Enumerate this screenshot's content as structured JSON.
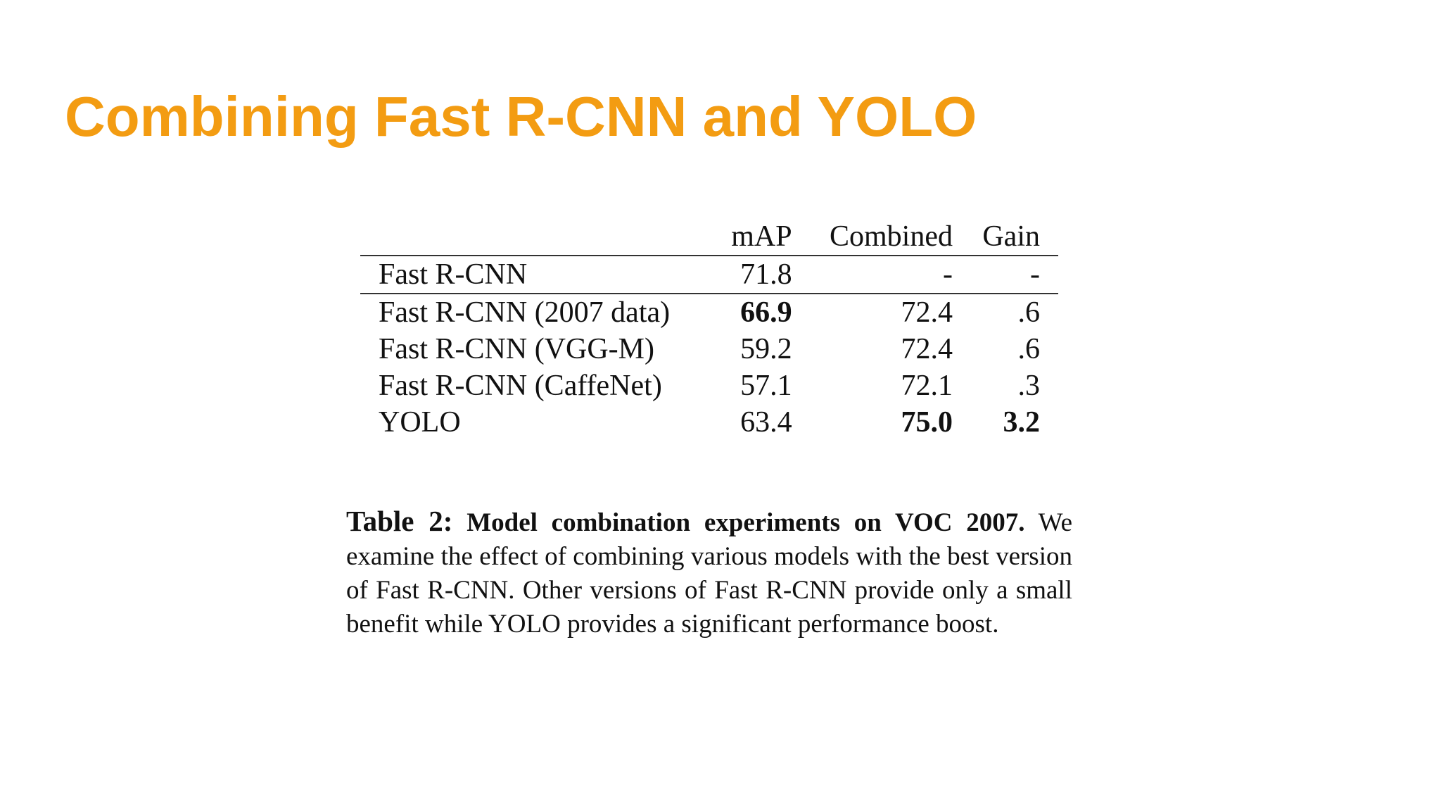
{
  "slide": {
    "title": "Combining Fast R-CNN and YOLO",
    "title_color": "#f39c12"
  },
  "table": {
    "headers": [
      "",
      "mAP",
      "Combined",
      "Gain"
    ],
    "rows": [
      {
        "method": "Fast R-CNN",
        "map": "71.8",
        "combined": "-",
        "gain": "-"
      },
      {
        "method": "Fast R-CNN (2007 data)",
        "map": "66.9",
        "combined": "72.4",
        "gain": ".6"
      },
      {
        "method": "Fast R-CNN (VGG-M)",
        "map": "59.2",
        "combined": "72.4",
        "gain": ".6"
      },
      {
        "method": "Fast R-CNN (CaffeNet)",
        "map": "57.1",
        "combined": "72.1",
        "gain": ".3"
      },
      {
        "method": "YOLO",
        "map": "63.4",
        "combined": "75.0",
        "gain": "3.2"
      }
    ]
  },
  "caption": {
    "label": "Table 2:",
    "heading": "Model combination experiments on VOC 2007.",
    "body": "We examine the effect of combining various models with the best version of Fast R-CNN. Other versions of Fast R-CNN provide only a small benefit while YOLO provides a significant performance boost."
  }
}
